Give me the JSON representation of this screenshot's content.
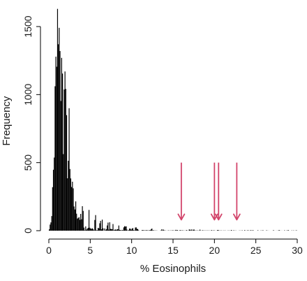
{
  "chart_data": {
    "type": "bar",
    "xlabel": "% Eosinophils",
    "ylabel": "Frequency",
    "xlim": [
      0,
      30
    ],
    "ylim": [
      0,
      1500
    ],
    "x_ticks": [
      0,
      5,
      10,
      15,
      20,
      25,
      30
    ],
    "y_ticks": [
      0,
      500,
      1000,
      1500
    ],
    "grid": false,
    "bar_color": "#000000",
    "bin_width": 0.1,
    "peaks": [
      {
        "x": 1.0,
        "y": 1630
      },
      {
        "x": 1.1,
        "y": 1370
      },
      {
        "x": 1.3,
        "y": 1320
      },
      {
        "x": 1.5,
        "y": 1270
      },
      {
        "x": 1.9,
        "y": 1170
      },
      {
        "x": 2.4,
        "y": 900
      },
      {
        "x": 4.0,
        "y": 180
      }
    ],
    "histogram": [
      [
        0.0,
        10
      ],
      [
        0.2,
        40
      ],
      [
        0.4,
        180
      ],
      [
        0.6,
        520
      ],
      [
        0.8,
        980
      ],
      [
        1.0,
        1220
      ],
      [
        1.2,
        1180
      ],
      [
        1.4,
        1100
      ],
      [
        1.6,
        1000
      ],
      [
        1.8,
        920
      ],
      [
        2.0,
        800
      ],
      [
        2.2,
        620
      ],
      [
        2.4,
        470
      ],
      [
        2.6,
        360
      ],
      [
        2.8,
        280
      ],
      [
        3.0,
        210
      ],
      [
        3.5,
        120
      ],
      [
        4.0,
        75
      ],
      [
        4.5,
        55
      ],
      [
        5.0,
        40
      ],
      [
        6.0,
        28
      ],
      [
        7.0,
        20
      ],
      [
        8.0,
        15
      ],
      [
        10.0,
        8
      ],
      [
        12.0,
        5
      ],
      [
        15.0,
        3
      ],
      [
        20.0,
        2
      ],
      [
        25.0,
        1
      ],
      [
        30.0,
        1
      ]
    ],
    "arrows": [
      {
        "x": 16.0
      },
      {
        "x": 20.0
      },
      {
        "x": 20.5
      },
      {
        "x": 22.7
      }
    ],
    "arrow_color": "#d2456b",
    "arrow_top_value": 500,
    "arrow_tip_value": 80
  }
}
